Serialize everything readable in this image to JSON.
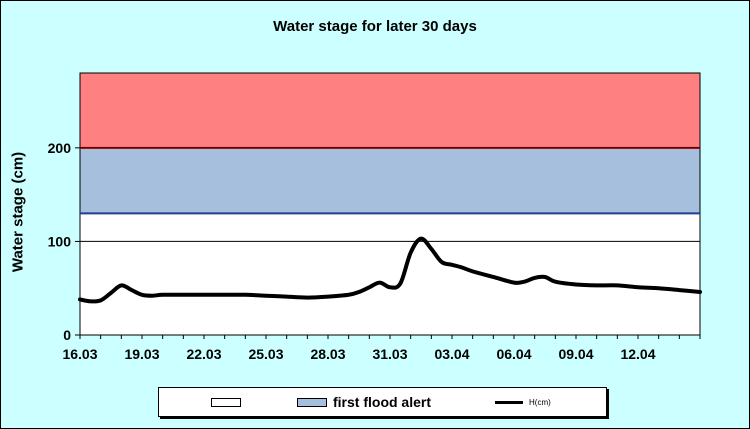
{
  "chart_data": {
    "type": "area",
    "title": "Water stage for later 30 days",
    "ylabel": "Water stage (cm)",
    "xlabel": "",
    "ylim": [
      0,
      280
    ],
    "yticks": [
      0,
      100,
      200
    ],
    "xlim": [
      "16.03",
      "15.04"
    ],
    "xticks": [
      "16.03",
      "19.03",
      "22.03",
      "25.03",
      "28.03",
      "31.03",
      "03.04",
      "06.04",
      "09.04",
      "12.04"
    ],
    "grid": "horizontal",
    "bands": [
      {
        "name": "",
        "from": 0,
        "to": 130,
        "fill": "#ffffff",
        "edge": "#000000"
      },
      {
        "name": "first flood alert",
        "from": 130,
        "to": 200,
        "fill": "#a5bfdd",
        "edge": "#1f3f8f"
      },
      {
        "name": "",
        "from": 200,
        "to": 280,
        "fill": "#ff8080",
        "edge": "#ff0000"
      }
    ],
    "series": [
      {
        "name": "H(cm)",
        "color": "#000000",
        "x": [
          "16.03",
          "16.03 12h",
          "17.03",
          "17.03 12h",
          "18.03",
          "18.03 12h",
          "19.03",
          "19.03 12h",
          "20.03",
          "21.03",
          "22.03",
          "23.03",
          "24.03",
          "25.03",
          "26.03",
          "27.03",
          "28.03",
          "29.03",
          "29.03 12h",
          "30.03",
          "30.03 12h",
          "31.03",
          "31.03 12h",
          "01.04",
          "01.04 12h",
          "02.04",
          "02.04 12h",
          "03.04",
          "03.04 12h",
          "04.04",
          "05.04",
          "06.04",
          "06.04 12h",
          "07.04",
          "07.04 12h",
          "08.04",
          "09.04",
          "10.04",
          "11.04",
          "12.04",
          "13.04",
          "14.04",
          "15.04"
        ],
        "y": [
          38,
          36,
          37,
          45,
          53,
          48,
          43,
          42,
          43,
          43,
          43,
          43,
          43,
          42,
          41,
          40,
          41,
          43,
          46,
          51,
          56,
          51,
          55,
          88,
          103,
          92,
          78,
          75,
          72,
          68,
          62,
          56,
          57,
          61,
          62,
          57,
          54,
          53,
          53,
          51,
          50,
          48,
          46
        ]
      }
    ]
  },
  "legend": {
    "items": [
      {
        "label": "",
        "color": "#ffffff"
      },
      {
        "label": "first flood alert",
        "color": "#a5bfdd"
      },
      {
        "label": "H(cm)",
        "color": "#000000"
      }
    ]
  }
}
